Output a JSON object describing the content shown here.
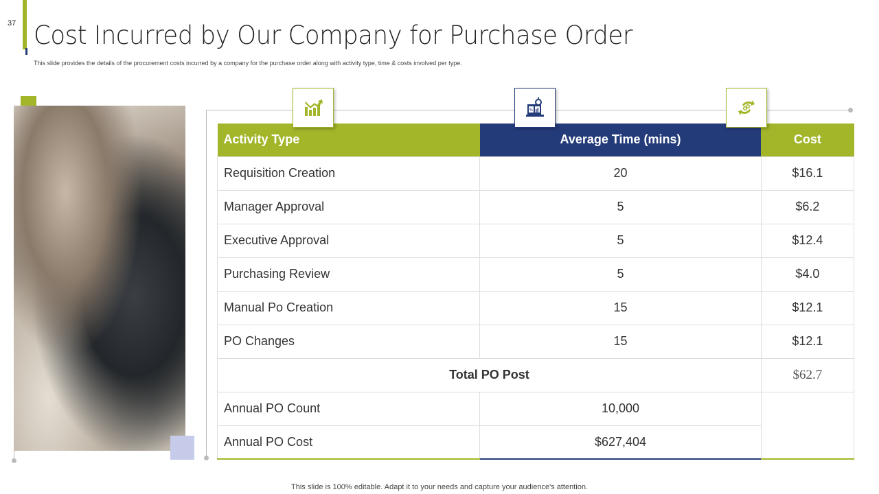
{
  "slide_number": "37",
  "title": "Cost Incurred by Our Company for Purchase Order",
  "subtitle": "This slide provides the details of the procurement costs incurred by a company for the purchase order along with activity type, time & costs involved per type.",
  "colors": {
    "accent_green": "#a3b529",
    "accent_blue": "#243b7a"
  },
  "icons": [
    "growth-chart-icon",
    "stopwatch-report-icon",
    "money-exchange-icon"
  ],
  "table": {
    "headers": [
      "Activity Type",
      "Average Time (mins)",
      "Cost"
    ],
    "rows": [
      [
        "Requisition Creation",
        "20",
        "$16.1"
      ],
      [
        "Manager Approval",
        "5",
        "$6.2"
      ],
      [
        "Executive Approval",
        "5",
        "$12.4"
      ],
      [
        "Purchasing Review",
        "5",
        "$4.0"
      ],
      [
        "Manual  Po Creation",
        "15",
        "$12.1"
      ],
      [
        "PO Changes",
        "15",
        "$12.1"
      ]
    ],
    "total_label": "Total PO Post",
    "total_value": "$62.7",
    "annual": [
      [
        "Annual PO Count",
        "10,000"
      ],
      [
        "Annual PO Cost",
        "$627,404"
      ]
    ]
  },
  "footer": "This slide is 100% editable. Adapt it to your needs and capture your audience's attention."
}
